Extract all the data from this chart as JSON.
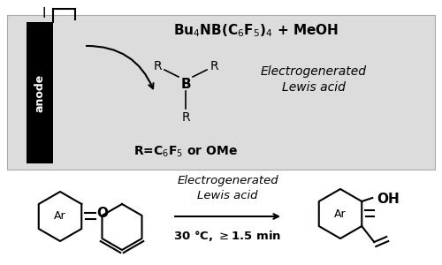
{
  "bg_color": "#ffffff",
  "box_color": "#dcdcdc",
  "text_color": "#000000",
  "anode_color": "#000000",
  "anode_text": "anode",
  "electrode_text": "I",
  "top_formula": "Bu$_4$NB(C$_6$F$_5$)$_4$ + MeOH",
  "boron_label": "B",
  "R_label": "R",
  "electrogen_box": "Electrogenerated\nLewis acid",
  "R_eq_text": "R=C$_6$F$_5$ or OMe",
  "rxn_label": "Electrogenerated\nLewis acid",
  "rxn_condition": "30 °C, ≥1.5 min"
}
